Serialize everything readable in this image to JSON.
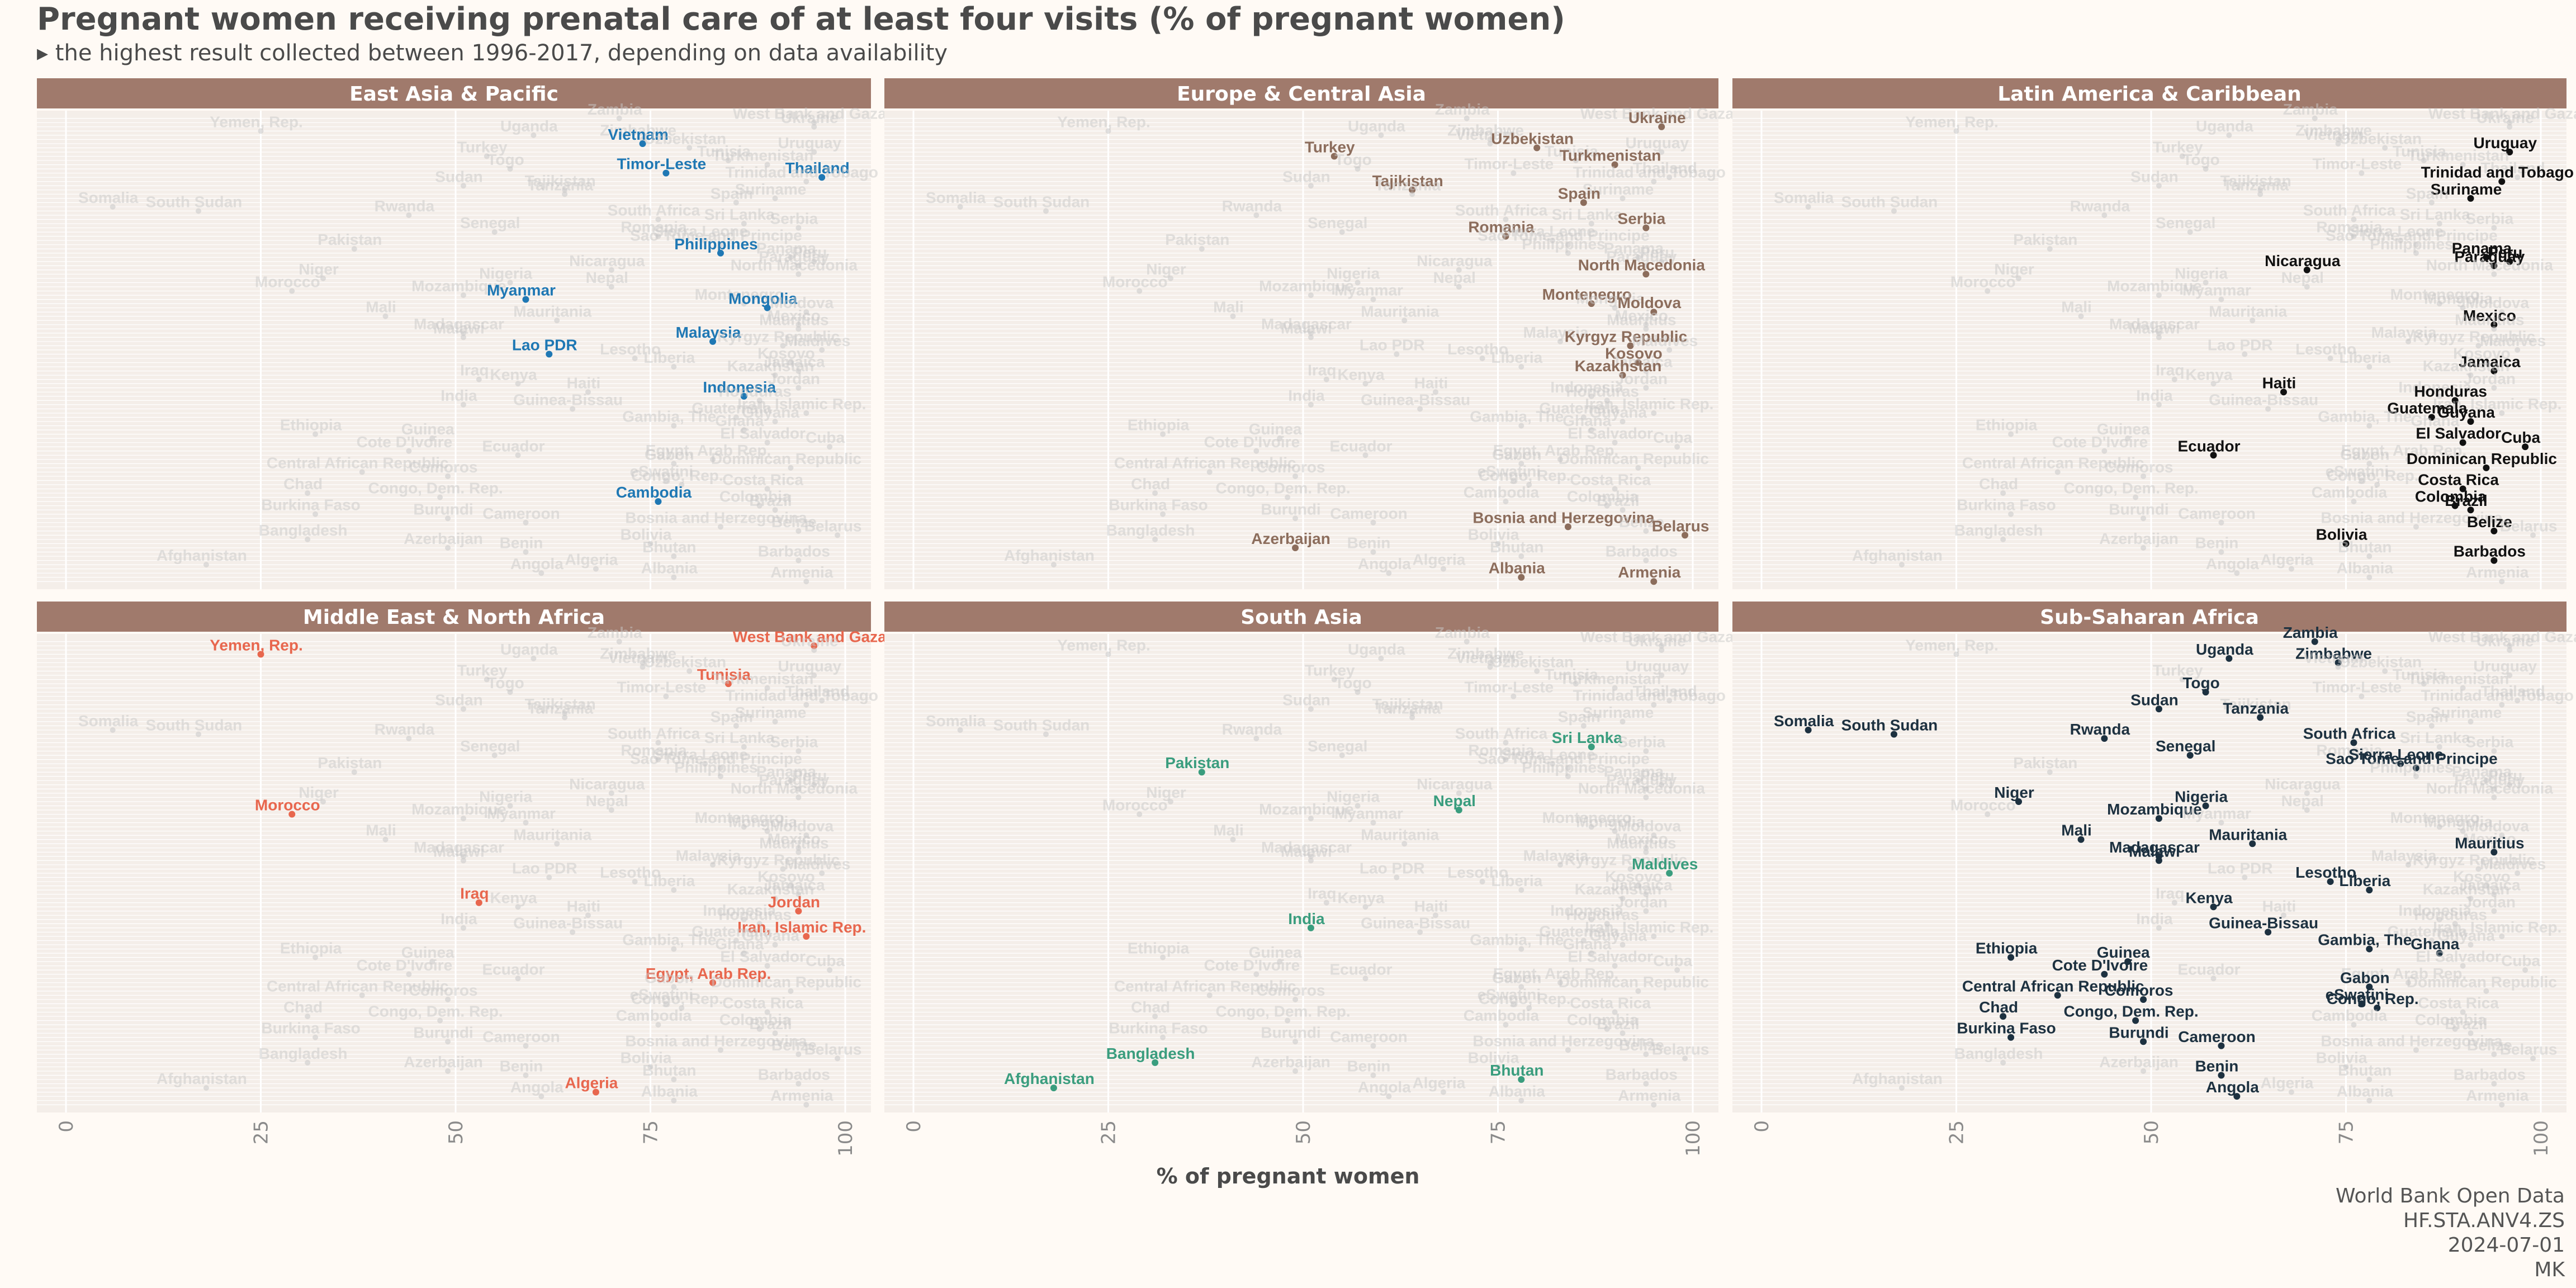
{
  "title": "Pregnant women receiving prenatal care of at least four visits (% of pregnant women)",
  "subtitle": "▸ the highest result collected between 1996-2017, depending on data availability",
  "caption": [
    "World Bank Open Data",
    "HF.STA.ANV4.ZS",
    "2024-07-01",
    "MK"
  ],
  "colors": {
    "background": "#fffaf5",
    "strip": "#a07a6c",
    "grey_points": "#c8c8c8",
    "East Asia & Pacific": "#1f78b4",
    "Europe & Central Asia": "#8c6d5c",
    "Latin America & Caribbean": "#111111",
    "Middle East & North Africa": "#e8674e",
    "South Asia": "#3a9d7e",
    "Sub-Saharan Africa": "#1d3140"
  },
  "chart_data": {
    "type": "scatter",
    "xlabel": "% of pregnant women",
    "ylabel": "",
    "xlim": [
      0,
      100
    ],
    "x_ticks": [
      0,
      25,
      50,
      75,
      100
    ],
    "grid": true,
    "facets": [
      "East Asia & Pacific",
      "Europe & Central Asia",
      "Latin America & Caribbean",
      "Middle East & North Africa",
      "South Asia",
      "Sub-Saharan Africa"
    ],
    "points": [
      {
        "country": "Zambia",
        "value": 71,
        "region": "Sub-Saharan Africa"
      },
      {
        "country": "West Bank and Gaza",
        "value": 96,
        "region": "Middle East & North Africa"
      },
      {
        "country": "Ukraine",
        "value": 96,
        "region": "Europe & Central Asia"
      },
      {
        "country": "Yemen, Rep.",
        "value": 25,
        "region": "Middle East & North Africa"
      },
      {
        "country": "Uganda",
        "value": 60,
        "region": "Sub-Saharan Africa"
      },
      {
        "country": "Zimbabwe",
        "value": 74,
        "region": "Sub-Saharan Africa"
      },
      {
        "country": "Vietnam",
        "value": 74,
        "region": "East Asia & Pacific"
      },
      {
        "country": "Uzbekistan",
        "value": 80,
        "region": "Europe & Central Asia"
      },
      {
        "country": "Uruguay",
        "value": 96,
        "region": "Latin America & Caribbean"
      },
      {
        "country": "Turkey",
        "value": 54,
        "region": "Europe & Central Asia"
      },
      {
        "country": "Tunisia",
        "value": 85,
        "region": "Middle East & North Africa"
      },
      {
        "country": "Turkmenistan",
        "value": 90,
        "region": "Europe & Central Asia"
      },
      {
        "country": "Togo",
        "value": 57,
        "region": "Sub-Saharan Africa"
      },
      {
        "country": "Timor-Leste",
        "value": 77,
        "region": "East Asia & Pacific"
      },
      {
        "country": "Thailand",
        "value": 97,
        "region": "East Asia & Pacific"
      },
      {
        "country": "Trinidad and Tobago",
        "value": 95,
        "region": "Latin America & Caribbean"
      },
      {
        "country": "Sudan",
        "value": 51,
        "region": "Sub-Saharan Africa"
      },
      {
        "country": "Tajikistan",
        "value": 64,
        "region": "Europe & Central Asia"
      },
      {
        "country": "Tanzania",
        "value": 64,
        "region": "Sub-Saharan Africa"
      },
      {
        "country": "Suriname",
        "value": 91,
        "region": "Latin America & Caribbean"
      },
      {
        "country": "Spain",
        "value": 86,
        "region": "Europe & Central Asia"
      },
      {
        "country": "Somalia",
        "value": 6,
        "region": "Sub-Saharan Africa"
      },
      {
        "country": "South Sudan",
        "value": 17,
        "region": "Sub-Saharan Africa"
      },
      {
        "country": "Rwanda",
        "value": 44,
        "region": "Sub-Saharan Africa"
      },
      {
        "country": "South Africa",
        "value": 76,
        "region": "Sub-Saharan Africa"
      },
      {
        "country": "Sri Lanka",
        "value": 87,
        "region": "South Asia"
      },
      {
        "country": "Serbia",
        "value": 94,
        "region": "Europe & Central Asia"
      },
      {
        "country": "Senegal",
        "value": 55,
        "region": "Sub-Saharan Africa"
      },
      {
        "country": "Romania",
        "value": 76,
        "region": "Europe & Central Asia"
      },
      {
        "country": "Sierra Leone",
        "value": 82,
        "region": "Sub-Saharan Africa"
      },
      {
        "country": "Sao Tome and Principe",
        "value": 84,
        "region": "Sub-Saharan Africa"
      },
      {
        "country": "Pakistan",
        "value": 37,
        "region": "South Asia"
      },
      {
        "country": "Philippines",
        "value": 84,
        "region": "East Asia & Pacific"
      },
      {
        "country": "Panama",
        "value": 93,
        "region": "Latin America & Caribbean"
      },
      {
        "country": "Peru",
        "value": 96,
        "region": "Latin America & Caribbean"
      },
      {
        "country": "Paraguay",
        "value": 94,
        "region": "Latin America & Caribbean"
      },
      {
        "country": "Nicaragua",
        "value": 70,
        "region": "Latin America & Caribbean"
      },
      {
        "country": "North Macedonia",
        "value": 94,
        "region": "Europe & Central Asia"
      },
      {
        "country": "Niger",
        "value": 33,
        "region": "Sub-Saharan Africa"
      },
      {
        "country": "Nigeria",
        "value": 57,
        "region": "Sub-Saharan Africa"
      },
      {
        "country": "Nepal",
        "value": 70,
        "region": "South Asia"
      },
      {
        "country": "Morocco",
        "value": 29,
        "region": "Middle East & North Africa"
      },
      {
        "country": "Mozambique",
        "value": 51,
        "region": "Sub-Saharan Africa"
      },
      {
        "country": "Myanmar",
        "value": 59,
        "region": "East Asia & Pacific"
      },
      {
        "country": "Montenegro",
        "value": 87,
        "region": "Europe & Central Asia"
      },
      {
        "country": "Mongolia",
        "value": 90,
        "region": "East Asia & Pacific"
      },
      {
        "country": "Moldova",
        "value": 95,
        "region": "Europe & Central Asia"
      },
      {
        "country": "Mali",
        "value": 41,
        "region": "Sub-Saharan Africa"
      },
      {
        "country": "Mauritania",
        "value": 63,
        "region": "Sub-Saharan Africa"
      },
      {
        "country": "Mexico",
        "value": 94,
        "region": "Latin America & Caribbean"
      },
      {
        "country": "Mauritius",
        "value": 94,
        "region": "Sub-Saharan Africa"
      },
      {
        "country": "Madagascar",
        "value": 51,
        "region": "Sub-Saharan Africa"
      },
      {
        "country": "Malawi",
        "value": 51,
        "region": "Sub-Saharan Africa"
      },
      {
        "country": "Malaysia",
        "value": 83,
        "region": "East Asia & Pacific"
      },
      {
        "country": "Kyrgyz Republic",
        "value": 92,
        "region": "Europe & Central Asia"
      },
      {
        "country": "Maldives",
        "value": 97,
        "region": "South Asia"
      },
      {
        "country": "Lao PDR",
        "value": 62,
        "region": "East Asia & Pacific"
      },
      {
        "country": "Lesotho",
        "value": 73,
        "region": "Sub-Saharan Africa"
      },
      {
        "country": "Kosovo",
        "value": 93,
        "region": "Europe & Central Asia"
      },
      {
        "country": "Liberia",
        "value": 78,
        "region": "Sub-Saharan Africa"
      },
      {
        "country": "Jamaica",
        "value": 94,
        "region": "Latin America & Caribbean"
      },
      {
        "country": "Kazakhstan",
        "value": 91,
        "region": "Europe & Central Asia"
      },
      {
        "country": "Iraq",
        "value": 53,
        "region": "Middle East & North Africa"
      },
      {
        "country": "Kenya",
        "value": 58,
        "region": "Sub-Saharan Africa"
      },
      {
        "country": "Jordan",
        "value": 94,
        "region": "Middle East & North Africa"
      },
      {
        "country": "Haiti",
        "value": 67,
        "region": "Latin America & Caribbean"
      },
      {
        "country": "Indonesia",
        "value": 87,
        "region": "East Asia & Pacific"
      },
      {
        "country": "Honduras",
        "value": 89,
        "region": "Latin America & Caribbean"
      },
      {
        "country": "India",
        "value": 51,
        "region": "South Asia"
      },
      {
        "country": "Guinea-Bissau",
        "value": 65,
        "region": "Sub-Saharan Africa"
      },
      {
        "country": "Iran, Islamic Rep.",
        "value": 95,
        "region": "Middle East & North Africa"
      },
      {
        "country": "Guatemala",
        "value": 86,
        "region": "Latin America & Caribbean"
      },
      {
        "country": "Guyana",
        "value": 91,
        "region": "Latin America & Caribbean"
      },
      {
        "country": "Gambia, The",
        "value": 78,
        "region": "Sub-Saharan Africa"
      },
      {
        "country": "Ghana",
        "value": 87,
        "region": "Sub-Saharan Africa"
      },
      {
        "country": "Ethiopia",
        "value": 32,
        "region": "Sub-Saharan Africa"
      },
      {
        "country": "Guinea",
        "value": 47,
        "region": "Sub-Saharan Africa"
      },
      {
        "country": "El Salvador",
        "value": 90,
        "region": "Latin America & Caribbean"
      },
      {
        "country": "Cuba",
        "value": 98,
        "region": "Latin America & Caribbean"
      },
      {
        "country": "Cote D'Ivoire",
        "value": 44,
        "region": "Sub-Saharan Africa"
      },
      {
        "country": "Ecuador",
        "value": 58,
        "region": "Latin America & Caribbean"
      },
      {
        "country": "Egypt, Arab Rep.",
        "value": 83,
        "region": "Middle East & North Africa"
      },
      {
        "country": "Gabon",
        "value": 78,
        "region": "Sub-Saharan Africa"
      },
      {
        "country": "Dominican Republic",
        "value": 93,
        "region": "Latin America & Caribbean"
      },
      {
        "country": "Central African Republic",
        "value": 38,
        "region": "Sub-Saharan Africa"
      },
      {
        "country": "Comoros",
        "value": 49,
        "region": "Sub-Saharan Africa"
      },
      {
        "country": "eSwatini",
        "value": 77,
        "region": "Sub-Saharan Africa"
      },
      {
        "country": "Congo, Rep.",
        "value": 79,
        "region": "Sub-Saharan Africa"
      },
      {
        "country": "Costa Rica",
        "value": 90,
        "region": "Latin America & Caribbean"
      },
      {
        "country": "Chad",
        "value": 31,
        "region": "Sub-Saharan Africa"
      },
      {
        "country": "Congo, Dem. Rep.",
        "value": 48,
        "region": "Sub-Saharan Africa"
      },
      {
        "country": "Cambodia",
        "value": 76,
        "region": "East Asia & Pacific"
      },
      {
        "country": "Colombia",
        "value": 89,
        "region": "Latin America & Caribbean"
      },
      {
        "country": "Brazil",
        "value": 91,
        "region": "Latin America & Caribbean"
      },
      {
        "country": "Burkina Faso",
        "value": 32,
        "region": "Sub-Saharan Africa"
      },
      {
        "country": "Burundi",
        "value": 49,
        "region": "Sub-Saharan Africa"
      },
      {
        "country": "Cameroon",
        "value": 59,
        "region": "Sub-Saharan Africa"
      },
      {
        "country": "Bosnia and Herzegovina",
        "value": 84,
        "region": "Europe & Central Asia"
      },
      {
        "country": "Belize",
        "value": 94,
        "region": "Latin America & Caribbean"
      },
      {
        "country": "Belarus",
        "value": 99,
        "region": "Europe & Central Asia"
      },
      {
        "country": "Bangladesh",
        "value": 31,
        "region": "South Asia"
      },
      {
        "country": "Bolivia",
        "value": 75,
        "region": "Latin America & Caribbean"
      },
      {
        "country": "Azerbaijan",
        "value": 49,
        "region": "Europe & Central Asia"
      },
      {
        "country": "Benin",
        "value": 59,
        "region": "Sub-Saharan Africa"
      },
      {
        "country": "Bhutan",
        "value": 78,
        "region": "South Asia"
      },
      {
        "country": "Barbados",
        "value": 94,
        "region": "Latin America & Caribbean"
      },
      {
        "country": "Afghanistan",
        "value": 18,
        "region": "South Asia"
      },
      {
        "country": "Algeria",
        "value": 68,
        "region": "Middle East & North Africa"
      },
      {
        "country": "Angola",
        "value": 61,
        "region": "Sub-Saharan Africa"
      },
      {
        "country": "Albania",
        "value": 78,
        "region": "Europe & Central Asia"
      },
      {
        "country": "Armenia",
        "value": 95,
        "region": "Europe & Central Asia"
      }
    ]
  }
}
